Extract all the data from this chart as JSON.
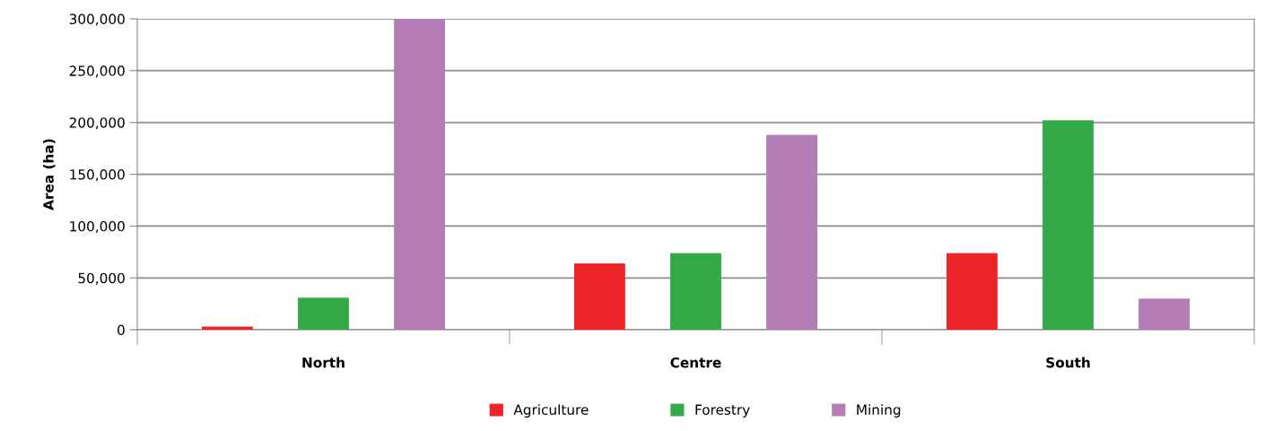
{
  "chart_data": {
    "type": "bar",
    "ylabel": "Area (ha)",
    "categories": [
      "North",
      "Centre",
      "South"
    ],
    "series": [
      {
        "name": "Agriculture",
        "color": "#ed2529",
        "values": [
          3000,
          64000,
          74000
        ]
      },
      {
        "name": "Forestry",
        "color": "#34a94a",
        "values": [
          31000,
          74000,
          202000
        ]
      },
      {
        "name": "Mining",
        "color": "#b57db5",
        "values": [
          300000,
          188000,
          30000
        ]
      }
    ],
    "ylim": [
      0,
      300000
    ],
    "yticks": [
      {
        "value": 0,
        "label": "0"
      },
      {
        "value": 50000,
        "label": "50,000"
      },
      {
        "value": 100000,
        "label": "100,000"
      },
      {
        "value": 150000,
        "label": "150,000"
      },
      {
        "value": 200000,
        "label": "200,000"
      },
      {
        "value": 250000,
        "label": "250,000"
      },
      {
        "value": 300000,
        "label": "300,000"
      }
    ],
    "grid": "y",
    "legend": "bottom"
  }
}
